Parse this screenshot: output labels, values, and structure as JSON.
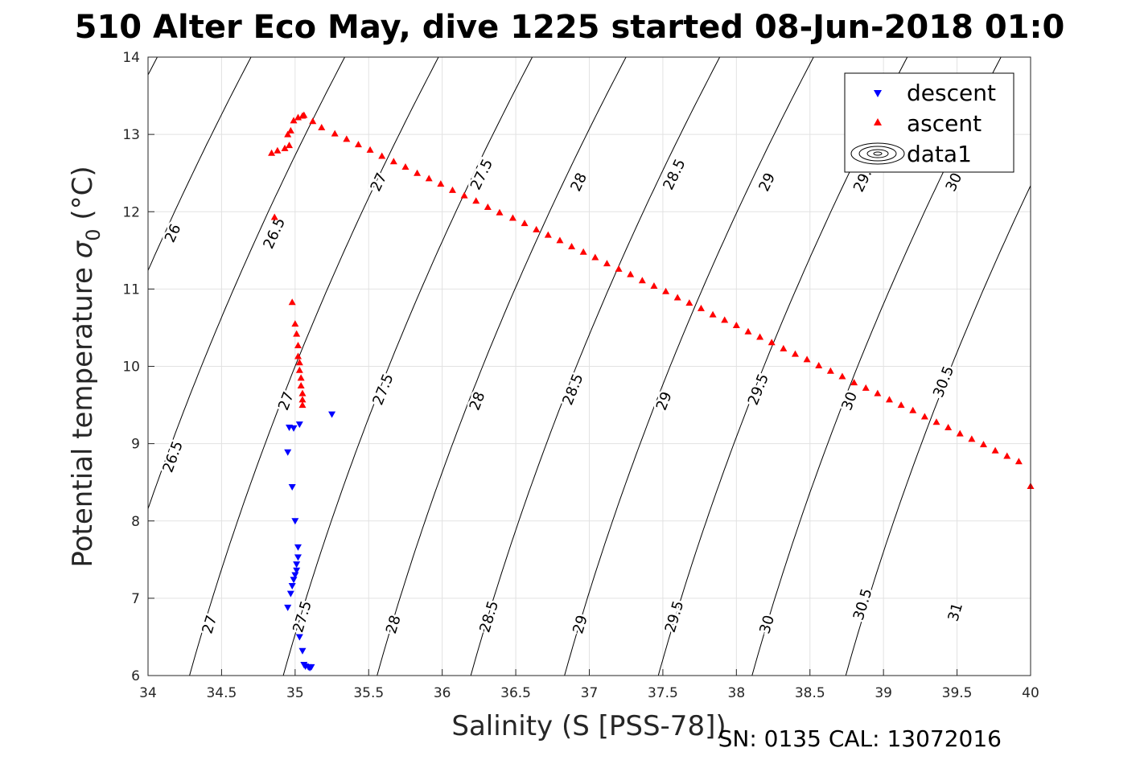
{
  "chart_data": {
    "type": "scatter",
    "title": "510 Alter Eco May, dive 1225 started 08-Jun-2018 01:0",
    "xlabel": "Salinity (S [PSS-78])",
    "ylabel_main": "Potential temperature ",
    "ylabel_sigma": "σ",
    "ylabel_sub": "0",
    "ylabel_unit": " (°C)",
    "footer": "SN: 0135  CAL: 13072016",
    "xlim": [
      34,
      40
    ],
    "ylim": [
      6,
      14
    ],
    "x_ticks": [
      34,
      34.5,
      35,
      35.5,
      36,
      36.5,
      37,
      37.5,
      38,
      38.5,
      39,
      39.5,
      40
    ],
    "x_tick_labels": [
      "34",
      "34.5",
      "35",
      "35.5",
      "36",
      "36.5",
      "37",
      "37.5",
      "38",
      "38.5",
      "39",
      "39.5",
      "40"
    ],
    "y_ticks": [
      6,
      7,
      8,
      9,
      10,
      11,
      12,
      13,
      14
    ],
    "y_tick_labels": [
      "6",
      "7",
      "8",
      "9",
      "10",
      "11",
      "12",
      "13",
      "14"
    ],
    "grid": true,
    "legend_position": "top-right",
    "contours": {
      "levels": [
        26,
        26.5,
        27,
        27.5,
        28,
        28.5,
        29,
        29.5,
        30,
        30.5,
        31
      ],
      "level_labels": [
        "26",
        "26.5",
        "27",
        "27.5",
        "28",
        "28.5",
        "29",
        "29.5",
        "30",
        "30.5",
        "31"
      ],
      "labels": [
        {
          "text": "26",
          "s": 34.17,
          "t": 11.72
        },
        {
          "text": "26.5",
          "s": 34.86,
          "t": 11.72
        },
        {
          "text": "27",
          "s": 35.57,
          "t": 12.38
        },
        {
          "text": "27.5",
          "s": 36.27,
          "t": 12.48
        },
        {
          "text": "28",
          "s": 36.93,
          "t": 12.38
        },
        {
          "text": "28.5",
          "s": 37.58,
          "t": 12.48
        },
        {
          "text": "29",
          "s": 38.21,
          "t": 12.38
        },
        {
          "text": "29.",
          "s": 38.86,
          "t": 12.4
        },
        {
          "text": "30",
          "s": 39.48,
          "t": 12.38
        },
        {
          "text": "26.5",
          "s": 34.17,
          "t": 8.83
        },
        {
          "text": "27",
          "s": 34.94,
          "t": 9.55
        },
        {
          "text": "27.5",
          "s": 35.6,
          "t": 9.7
        },
        {
          "text": "28",
          "s": 36.24,
          "t": 9.55
        },
        {
          "text": "28.5",
          "s": 36.89,
          "t": 9.7
        },
        {
          "text": "29",
          "s": 37.51,
          "t": 9.55
        },
        {
          "text": "29.5",
          "s": 38.15,
          "t": 9.7
        },
        {
          "text": "30",
          "s": 38.77,
          "t": 9.55
        },
        {
          "text": "30.5",
          "s": 39.41,
          "t": 9.8
        },
        {
          "text": "27",
          "s": 34.42,
          "t": 6.66
        },
        {
          "text": "27.5",
          "s": 35.05,
          "t": 6.76
        },
        {
          "text": "28",
          "s": 35.67,
          "t": 6.66
        },
        {
          "text": "28.5",
          "s": 36.32,
          "t": 6.76
        },
        {
          "text": "29",
          "s": 36.94,
          "t": 6.66
        },
        {
          "text": "29.5",
          "s": 37.58,
          "t": 6.76
        },
        {
          "text": "30",
          "s": 38.21,
          "t": 6.66
        },
        {
          "text": "30.5",
          "s": 38.86,
          "t": 6.92
        },
        {
          "text": "31",
          "s": 39.49,
          "t": 6.82
        }
      ]
    },
    "series": [
      {
        "name": "descent",
        "marker": "triangle-down",
        "color": "#0000ff",
        "x": [
          35.25,
          35.03,
          34.99,
          34.96,
          34.95,
          34.98,
          35.0,
          35.02,
          35.02,
          35.01,
          35.01,
          35.0,
          34.99,
          34.98,
          34.97,
          34.95,
          35.03,
          35.05,
          35.06,
          35.07,
          35.09,
          35.11,
          35.1
        ],
        "y": [
          9.38,
          9.25,
          9.2,
          9.21,
          8.89,
          8.44,
          8.0,
          7.66,
          7.53,
          7.44,
          7.36,
          7.3,
          7.24,
          7.16,
          7.06,
          6.88,
          6.5,
          6.32,
          6.14,
          6.12,
          6.11,
          6.11,
          6.1
        ]
      },
      {
        "name": "ascent",
        "marker": "triangle-up",
        "color": "#ff0000",
        "x": [
          34.84,
          34.88,
          34.93,
          34.96,
          34.95,
          34.97,
          34.99,
          35.02,
          35.05,
          35.06,
          35.12,
          35.18,
          35.27,
          35.35,
          35.43,
          35.51,
          35.59,
          35.67,
          35.75,
          35.83,
          35.91,
          35.99,
          36.07,
          36.15,
          36.23,
          36.31,
          36.39,
          36.48,
          36.56,
          36.64,
          36.72,
          36.8,
          36.88,
          36.96,
          37.04,
          37.12,
          37.2,
          37.28,
          37.36,
          37.44,
          37.52,
          37.6,
          37.68,
          37.76,
          37.84,
          37.92,
          38.0,
          38.08,
          38.16,
          38.24,
          38.32,
          38.4,
          38.48,
          38.56,
          38.64,
          38.72,
          38.8,
          38.88,
          38.96,
          39.04,
          39.12,
          39.2,
          39.28,
          39.36,
          39.44,
          39.52,
          39.6,
          39.68,
          39.76,
          39.84,
          39.92,
          40.0,
          34.86,
          34.98,
          35.0,
          35.01,
          35.02,
          35.02,
          35.03,
          35.03,
          35.04,
          35.04,
          35.05,
          35.05,
          35.05
        ],
        "y": [
          12.76,
          12.79,
          12.82,
          12.86,
          13.0,
          13.05,
          13.18,
          13.22,
          13.24,
          13.25,
          13.17,
          13.09,
          13.01,
          12.94,
          12.87,
          12.8,
          12.72,
          12.65,
          12.58,
          12.5,
          12.43,
          12.36,
          12.28,
          12.21,
          12.14,
          12.06,
          11.99,
          11.92,
          11.85,
          11.77,
          11.7,
          11.63,
          11.55,
          11.48,
          11.41,
          11.33,
          11.26,
          11.19,
          11.11,
          11.04,
          10.97,
          10.89,
          10.82,
          10.75,
          10.67,
          10.6,
          10.53,
          10.45,
          10.38,
          10.31,
          10.23,
          10.16,
          10.09,
          10.01,
          9.94,
          9.87,
          9.79,
          9.72,
          9.65,
          9.57,
          9.5,
          9.43,
          9.35,
          9.28,
          9.21,
          9.13,
          9.06,
          8.99,
          8.91,
          8.84,
          8.77,
          8.45,
          11.93,
          10.83,
          10.55,
          10.42,
          10.27,
          10.13,
          10.05,
          9.95,
          9.85,
          9.75,
          9.65,
          9.57,
          9.5
        ]
      }
    ],
    "legend": [
      {
        "label": "descent",
        "marker": "triangle-down",
        "color": "#0000ff"
      },
      {
        "label": "ascent",
        "marker": "triangle-up",
        "color": "#ff0000"
      },
      {
        "label": "data1",
        "marker": "contour-ellipses",
        "color": "#000000"
      }
    ]
  }
}
